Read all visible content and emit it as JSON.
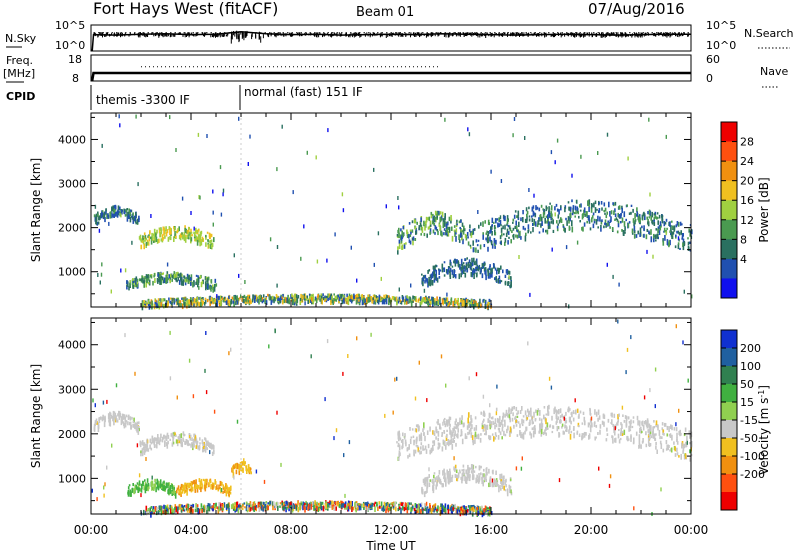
{
  "header": {
    "station": "Fort Hays West (fitACF)",
    "beam": "Beam 01",
    "date": "07/Aug/2016"
  },
  "chart_data": [
    {
      "type": "line",
      "panel": "noise",
      "ylabel_left": "N.Sky",
      "ylabel_right": "N.Search",
      "yticks": [
        "10^5",
        "10^0"
      ],
      "series": [
        {
          "name": "N.Sky",
          "x_hours": [
            0,
            0.05,
            0.1,
            1,
            2,
            3,
            4,
            5,
            6,
            7,
            8,
            9,
            10,
            11,
            12,
            13,
            14,
            15,
            16,
            17,
            18,
            19,
            20,
            21,
            22,
            23,
            24
          ],
          "log10": [
            0,
            0,
            3.2,
            3.1,
            3.3,
            3.4,
            3.2,
            3.3,
            3.8,
            3.4,
            3.2,
            3.3,
            3.1,
            3.2,
            3.3,
            3.2,
            3.4,
            3.3,
            3.2,
            3.1,
            3.2,
            3.3,
            3.2,
            3.1,
            3.2,
            3.3,
            3.3
          ]
        },
        {
          "name": "N.Search",
          "x_hours": [
            0.1,
            24
          ],
          "log10": [
            3.6,
            3.6
          ]
        }
      ]
    },
    {
      "type": "line",
      "panel": "frequency",
      "ylabel_left": "Freq. [MHz]",
      "ylabel_right": "Nave",
      "yticks_left": [
        "18",
        "8"
      ],
      "yticks_right": [
        "60",
        "0"
      ],
      "series": [
        {
          "name": "Freq",
          "x_hours": [
            0,
            0.05,
            0.1,
            24
          ],
          "mhz": [
            8,
            8,
            10.9,
            10.9
          ]
        },
        {
          "name": "Nave",
          "x_hours": [
            2,
            14
          ],
          "nave": [
            33,
            33
          ]
        }
      ]
    },
    {
      "type": "table",
      "panel": "cpid",
      "label": "CPID",
      "segments": [
        {
          "start_hours": 0,
          "end_hours": 6,
          "text": "themis -3300 IF"
        },
        {
          "start_hours": 6,
          "end_hours": 24,
          "text": "normal (fast) 151 IF"
        }
      ]
    },
    {
      "type": "heatmap",
      "panel": "power",
      "ylabel": "Slant Range [km]",
      "yticks": [
        1000,
        2000,
        3000,
        4000
      ],
      "ylim": [
        200,
        4600
      ],
      "colorbar_label": "Power [dB]",
      "colorbar_ticks": [
        4,
        8,
        12,
        16,
        20,
        24,
        28
      ],
      "colorbar_range": [
        0,
        32
      ],
      "colorbar_colors": [
        "#1010ee",
        "#2050b0",
        "#2a7060",
        "#4a9a50",
        "#a0d040",
        "#f0c020",
        "#f09010",
        "#ff5010",
        "#ee0000"
      ],
      "clusters": [
        {
          "t": [
            0.1,
            1.9
          ],
          "r": [
            2100,
            2500
          ],
          "dB": [
            4,
            14
          ]
        },
        {
          "t": [
            1.9,
            4.9
          ],
          "r": [
            1600,
            2050
          ],
          "dB": [
            14,
            24
          ]
        },
        {
          "t": [
            1.4,
            5.0
          ],
          "r": [
            650,
            1000
          ],
          "dB": [
            6,
            18
          ]
        },
        {
          "t": [
            12.2,
            15.4
          ],
          "r": [
            1500,
            2350
          ],
          "dB": [
            4,
            20
          ]
        },
        {
          "t": [
            15.4,
            24
          ],
          "r": [
            1500,
            2600
          ],
          "dB": [
            4,
            16
          ]
        },
        {
          "t": [
            13.2,
            16.8
          ],
          "r": [
            700,
            1300
          ],
          "dB": [
            4,
            12
          ]
        },
        {
          "t": [
            2,
            16
          ],
          "r": [
            250,
            500
          ],
          "dB": [
            4,
            26
          ]
        }
      ]
    },
    {
      "type": "heatmap",
      "panel": "velocity",
      "ylabel": "Slant Range [km]",
      "yticks": [
        1000,
        2000,
        3000,
        4000
      ],
      "ylim": [
        200,
        4600
      ],
      "colorbar_label": "Velocity [m s^-1]",
      "colorbar_ticks": [
        "200",
        "100",
        "50",
        "15",
        "-15",
        "-50",
        "-100",
        "-200"
      ],
      "colorbar_colors": [
        "#1030d0",
        "#2060a0",
        "#308050",
        "#40b040",
        "#90d050",
        "#c8c8c8",
        "#f0c020",
        "#f09010",
        "#ff5010",
        "#ee0000"
      ],
      "clusters": [
        {
          "t": [
            0.1,
            1.9
          ],
          "r": [
            2100,
            2500
          ],
          "v": "ground"
        },
        {
          "t": [
            1.9,
            4.9
          ],
          "r": [
            1600,
            2050
          ],
          "v": "ground"
        },
        {
          "t": [
            1.4,
            3.4
          ],
          "r": [
            650,
            1000
          ],
          "v": "toward"
        },
        {
          "t": [
            3.4,
            5.6
          ],
          "r": [
            650,
            1000
          ],
          "v": "away"
        },
        {
          "t": [
            5.6,
            6.4
          ],
          "r": [
            1100,
            1400
          ],
          "v": "away"
        },
        {
          "t": [
            12.2,
            24
          ],
          "r": [
            1500,
            2600
          ],
          "v": "ground"
        },
        {
          "t": [
            13.2,
            16.8
          ],
          "r": [
            700,
            1300
          ],
          "v": "ground"
        },
        {
          "t": [
            2,
            16
          ],
          "r": [
            250,
            500
          ],
          "v": "mixed"
        }
      ]
    }
  ],
  "x_axis": {
    "label": "Time UT",
    "ticks": [
      "00:00",
      "04:00",
      "08:00",
      "12:00",
      "16:00",
      "20:00",
      "00:00"
    ],
    "range_hours": [
      0,
      24
    ]
  }
}
